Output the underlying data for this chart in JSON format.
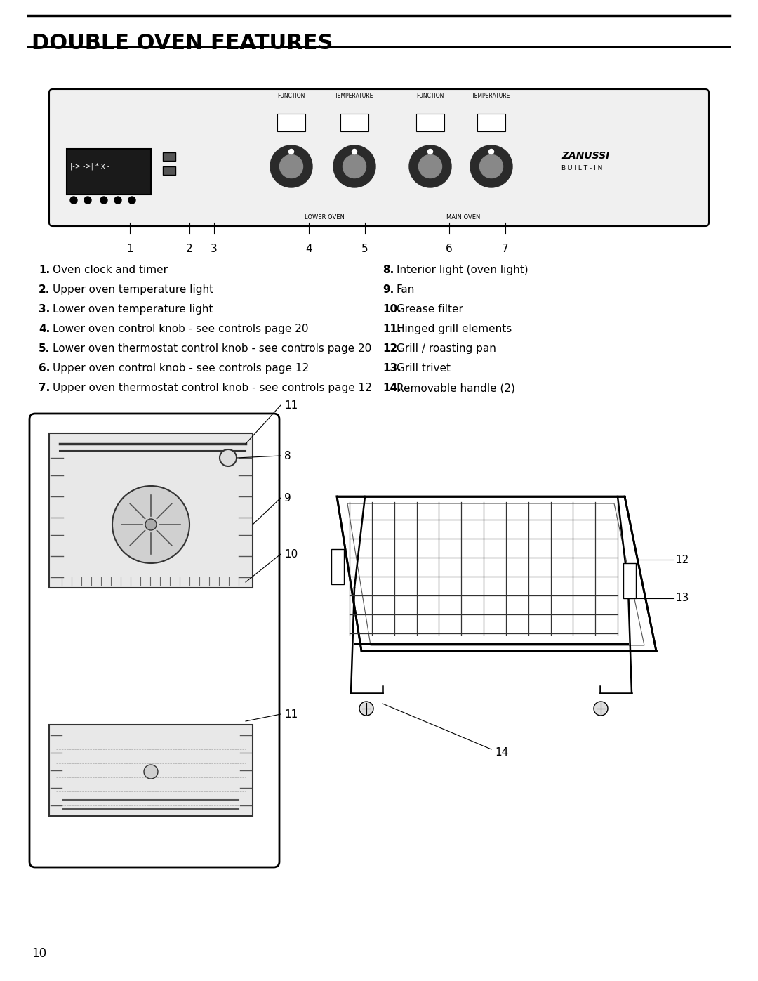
{
  "title": "DOUBLE OVEN FEATURES",
  "page_number": "10",
  "background_color": "#ffffff",
  "title_color": "#000000",
  "title_fontsize": 22,
  "left_list": [
    [
      "1.",
      "Oven clock and timer"
    ],
    [
      "2.",
      "Upper oven temperature light"
    ],
    [
      "3.",
      "Lower oven temperature light"
    ],
    [
      "4.",
      "Lower oven control knob - see controls page 20"
    ],
    [
      "5.",
      "Lower oven thermostat control knob - see controls page 20"
    ],
    [
      "6.",
      "Upper oven control knob - see controls page 12"
    ],
    [
      "7.",
      "Upper oven thermostat control knob - see controls page 12"
    ]
  ],
  "right_list": [
    [
      "8.",
      "Interior light (oven light)"
    ],
    [
      "9.",
      "Fan"
    ],
    [
      "10.",
      "Grease filter"
    ],
    [
      "11.",
      "Hinged grill elements"
    ],
    [
      "12.",
      "Grill / roasting pan"
    ],
    [
      "13.",
      "Grill trivet"
    ],
    [
      "14.",
      "Removable handle (2)"
    ]
  ],
  "item_fontsize": 11,
  "diagram_labels_top": [
    "1",
    "2",
    "3",
    "4",
    "5",
    "6",
    "7"
  ],
  "diagram_labels_bottom_left": [
    "8",
    "9",
    "10",
    "11"
  ],
  "diagram_labels_bottom_right": [
    "12",
    "13",
    "14"
  ]
}
